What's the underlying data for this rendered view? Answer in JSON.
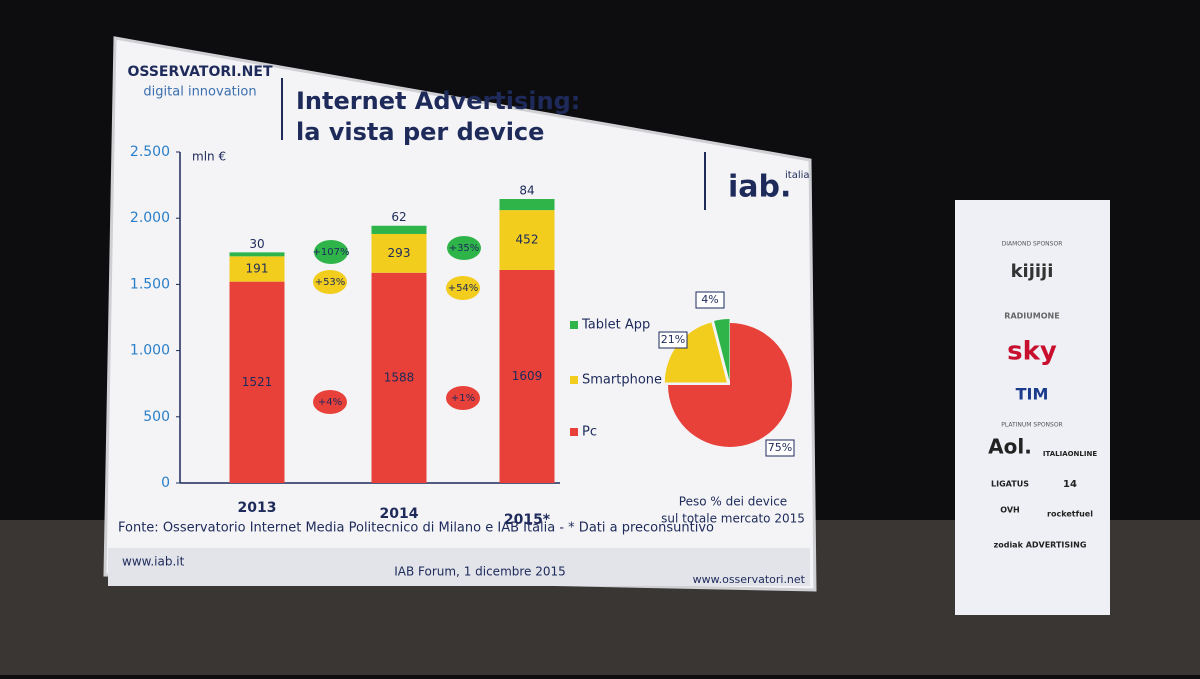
{
  "slide": {
    "title_line1": "Internet Advertising:",
    "title_line2": "la vista per device",
    "logo_main": "OSSERVATORI.NET",
    "logo_sub": "digital innovation",
    "iab_logo": "iab.",
    "iab_sub": "italia",
    "source": "Fonte: Osservatorio Internet Media Politecnico di Milano e IAB Italia - * Dati a preconsuntivo",
    "footer_left": "www.iab.it",
    "footer_center": "IAB Forum, 1 dicembre 2015",
    "footer_right": "www.osservatori.net"
  },
  "sponsors": {
    "diamond_heading": "DIAMOND SPONSOR",
    "diamond": [
      "kijiji",
      "RADIUMONE",
      "sky",
      "TIM"
    ],
    "platinum_heading": "PLATINUM SPONSOR",
    "platinum": [
      "Aol.",
      "ITALIAONLINE",
      "LIGATUS",
      "14",
      "OVH",
      "rocketfuel",
      "zodiak ADVERTISING"
    ]
  },
  "chart_data": [
    {
      "type": "stacked_bar",
      "y_label": "mln €",
      "categories": [
        "2013",
        "2014",
        "2015*"
      ],
      "series": [
        {
          "name": "Pc",
          "color": "#e8413a",
          "values": [
            1521,
            1588,
            1609
          ]
        },
        {
          "name": "Smartphone",
          "color": "#f2cd1d",
          "values": [
            191,
            293,
            452
          ]
        },
        {
          "name": "Tablet App",
          "color": "#2fb44a",
          "values": [
            30,
            62,
            84
          ]
        }
      ],
      "ylim": [
        0,
        2500
      ],
      "yticks": [
        0,
        500,
        {
          "value": 1000,
          "label": "1.000"
        },
        {
          "value": 1500,
          "label": "1.500"
        },
        {
          "value": 2000,
          "label": "2.000"
        },
        {
          "value": 2500,
          "label": "2.500"
        }
      ],
      "annotations": [
        "+4%",
        "+1%",
        "+53%",
        "+54%",
        "+107%",
        "+35%"
      ]
    },
    {
      "type": "pie",
      "caption_line1": "Peso % dei device",
      "caption_line2": "sul totale mercato 2015",
      "values": [
        75,
        21,
        4
      ],
      "value_labels": [
        "75%",
        "21%",
        "4%"
      ],
      "colors": [
        "#e8413a",
        "#f2cd1d",
        "#2fb44a"
      ]
    }
  ]
}
